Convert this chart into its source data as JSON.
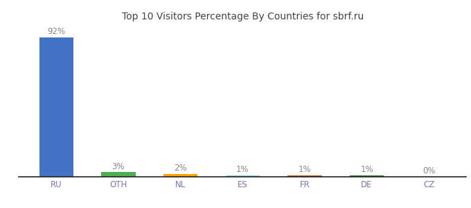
{
  "categories": [
    "RU",
    "OTH",
    "NL",
    "ES",
    "FR",
    "DE",
    "CZ"
  ],
  "values": [
    92,
    3,
    2,
    1,
    1,
    1,
    0
  ],
  "labels": [
    "92%",
    "3%",
    "2%",
    "1%",
    "1%",
    "1%",
    "0%"
  ],
  "bar_colors": [
    "#4472C4",
    "#4CAF50",
    "#FFA500",
    "#87CEEB",
    "#C05020",
    "#2E7D32",
    "#AAAAAA"
  ],
  "title": "Top 10 Visitors Percentage By Countries for sbrf.ru",
  "title_fontsize": 10,
  "label_fontsize": 8.5,
  "tick_fontsize": 8.5,
  "ylim": [
    0,
    100
  ],
  "background_color": "#ffffff",
  "bar_width": 0.55
}
